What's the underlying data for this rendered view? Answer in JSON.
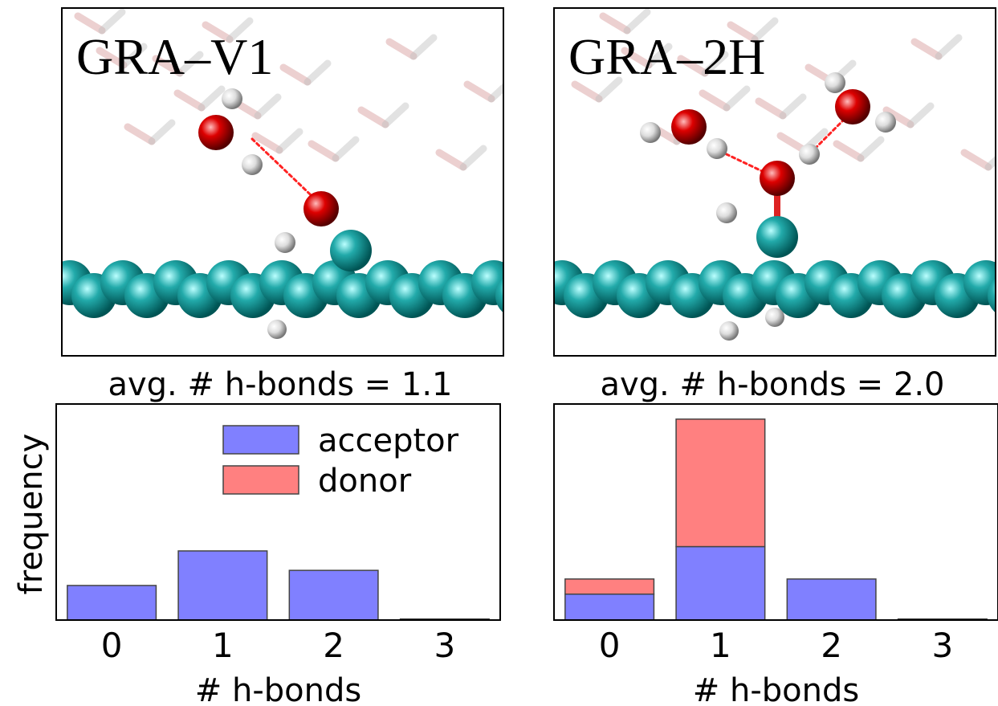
{
  "chart_data": {
    "type": "bar",
    "stacked": true,
    "categories": [
      "0",
      "1",
      "2",
      "3"
    ],
    "xlabel": "# h-bonds",
    "ylabel": "frequency",
    "ylim": [
      0,
      1
    ],
    "legend": "upper right",
    "series": [
      {
        "name": "acceptor",
        "color": "#8080ff"
      },
      {
        "name": "donor",
        "color": "#ff8080"
      }
    ],
    "panels": [
      {
        "title": "GRA–V1",
        "subtitle": "avg. # h-bonds = 1.1",
        "values": [
          [
            0.16,
            0.32,
            0.23,
            0.005
          ],
          [
            0,
            0,
            0,
            0
          ]
        ]
      },
      {
        "title": "GRA–2H",
        "subtitle": "avg. # h-bonds = 2.0",
        "values": [
          [
            0.12,
            0.34,
            0.19,
            0.005
          ],
          [
            0.07,
            0.59,
            0,
            0
          ]
        ]
      }
    ]
  }
}
